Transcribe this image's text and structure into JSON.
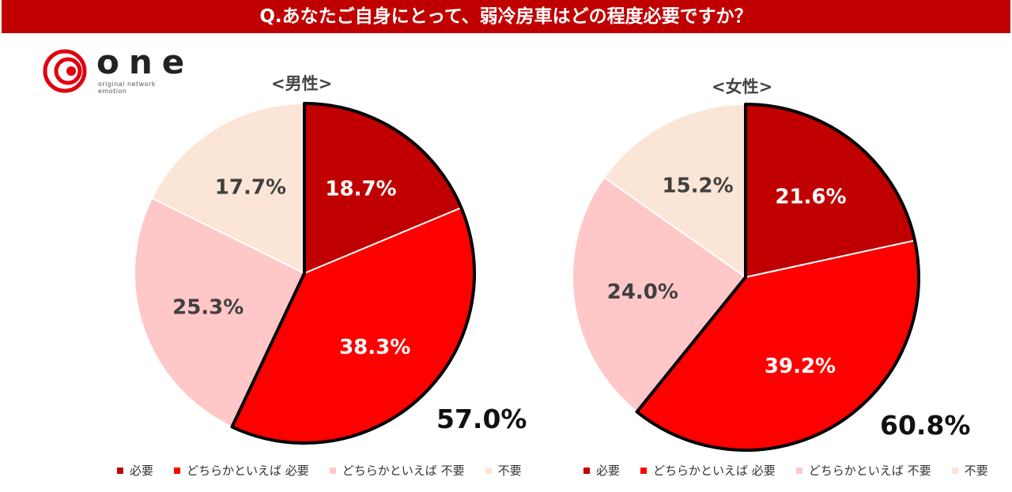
{
  "title": "Q.あなたご自身にとって、弱冷房車はどの程度必要ですか？",
  "logo": {
    "name": "one",
    "tagline": "original network emotion"
  },
  "colors": {
    "title_bg": "#c00000",
    "need": "#c00000",
    "somewhat_need": "#ff0000",
    "somewhat_not_need": "#ffc7c7",
    "not_need": "#fbe5d6"
  },
  "chart_data": [
    {
      "type": "pie",
      "title": "<男性>",
      "categories": [
        "必要",
        "どちらかといえば 必要",
        "どちらかといえば 不要",
        "不要"
      ],
      "values": [
        18.7,
        38.3,
        25.3,
        17.7
      ],
      "labels": [
        "18.7%",
        "38.3%",
        "25.3%",
        "17.7%"
      ],
      "highlight_total_label": "57.0%"
    },
    {
      "type": "pie",
      "title": "<女性>",
      "categories": [
        "必要",
        "どちらかといえば 必要",
        "どちらかといえば 不要",
        "不要"
      ],
      "values": [
        21.6,
        39.2,
        24.0,
        15.2
      ],
      "labels": [
        "21.6%",
        "39.2%",
        "24.0%",
        "15.2%"
      ],
      "highlight_total_label": "60.8%"
    }
  ]
}
